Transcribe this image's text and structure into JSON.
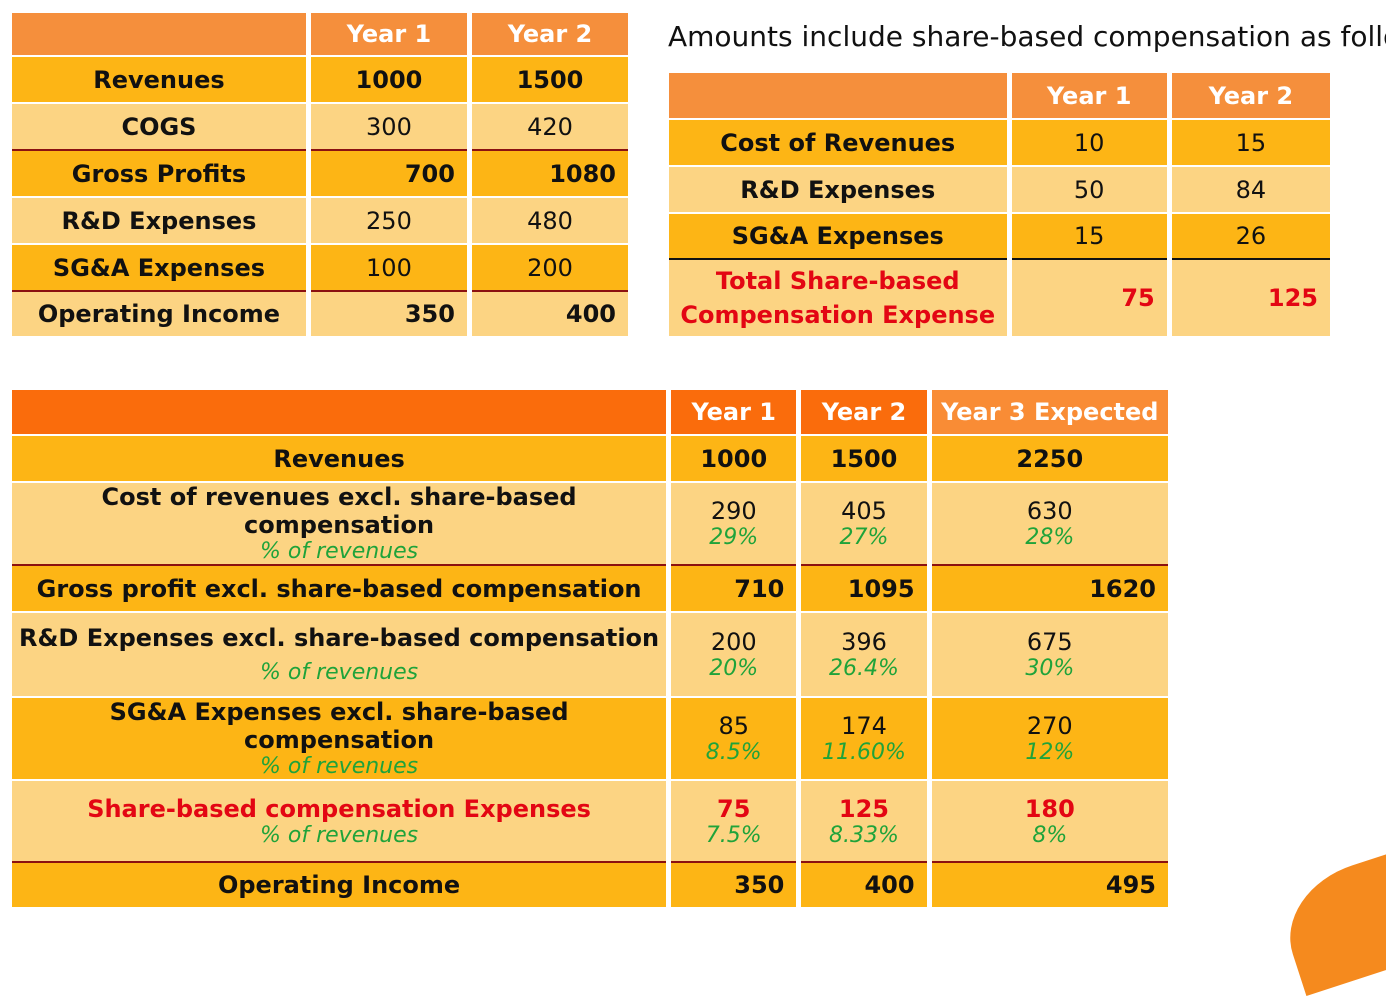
{
  "table1": {
    "headers": [
      "Year 1",
      "Year 2"
    ],
    "rows": [
      {
        "label": "Revenues",
        "y1": "1000",
        "y2": "1500"
      },
      {
        "label": "COGS",
        "y1": "300",
        "y2": "420"
      },
      {
        "label": "Gross Profits",
        "y1": "700",
        "y2": "1080"
      },
      {
        "label": "R&D Expenses",
        "y1": "250",
        "y2": "480"
      },
      {
        "label": "SG&A Expenses",
        "y1": "100",
        "y2": "200"
      },
      {
        "label": "Operating Income",
        "y1": "350",
        "y2": "400"
      }
    ]
  },
  "note": "Amounts include share-based compensation as follows:",
  "table2": {
    "headers": [
      "Year 1",
      "Year 2"
    ],
    "rows": [
      {
        "label": "Cost of Revenues",
        "y1": "10",
        "y2": "15"
      },
      {
        "label": "R&D Expenses",
        "y1": "50",
        "y2": "84"
      },
      {
        "label": "SG&A Expenses",
        "y1": "15",
        "y2": "26"
      },
      {
        "label_line1": "Total Share-based",
        "label_line2": "Compensation Expense",
        "y1": "75",
        "y2": "125"
      }
    ]
  },
  "table3": {
    "headers": [
      "Year 1",
      "Year 2",
      "Year 3 Expected"
    ],
    "pct_label": "%  of revenues",
    "rows": [
      {
        "label": "Revenues",
        "y1": "1000",
        "y2": "1500",
        "y3": "2250"
      },
      {
        "label": "Cost of revenues excl. share-based compensation",
        "y1": "290",
        "y2": "405",
        "y3": "630",
        "p1": "29%",
        "p2": "27%",
        "p3": "28%"
      },
      {
        "label": "Gross profit excl. share-based compensation",
        "y1": "710",
        "y2": "1095",
        "y3": "1620"
      },
      {
        "label": "R&D Expenses excl. share-based compensation",
        "y1": "200",
        "y2": "396",
        "y3": "675",
        "p1": "20%",
        "p2": "26.4%",
        "p3": "30%"
      },
      {
        "label": "SG&A Expenses excl. share-based compensation",
        "y1": "85",
        "y2": "174",
        "y3": "270",
        "p1": "8.5%",
        "p2": "11.60%",
        "p3": "12%"
      },
      {
        "label": "Share-based compensation Expenses",
        "y1": "75",
        "y2": "125",
        "y3": "180",
        "p1": "7.5%",
        "p2": "8.33%",
        "p3": "8%"
      },
      {
        "label": "Operating Income",
        "y1": "350",
        "y2": "400",
        "y3": "495"
      }
    ]
  },
  "colors": {
    "header": "#f58f3c",
    "dark_row": "#fdb515",
    "light_row": "#fcd483",
    "red": "#e30613",
    "green": "#1fa33a"
  }
}
